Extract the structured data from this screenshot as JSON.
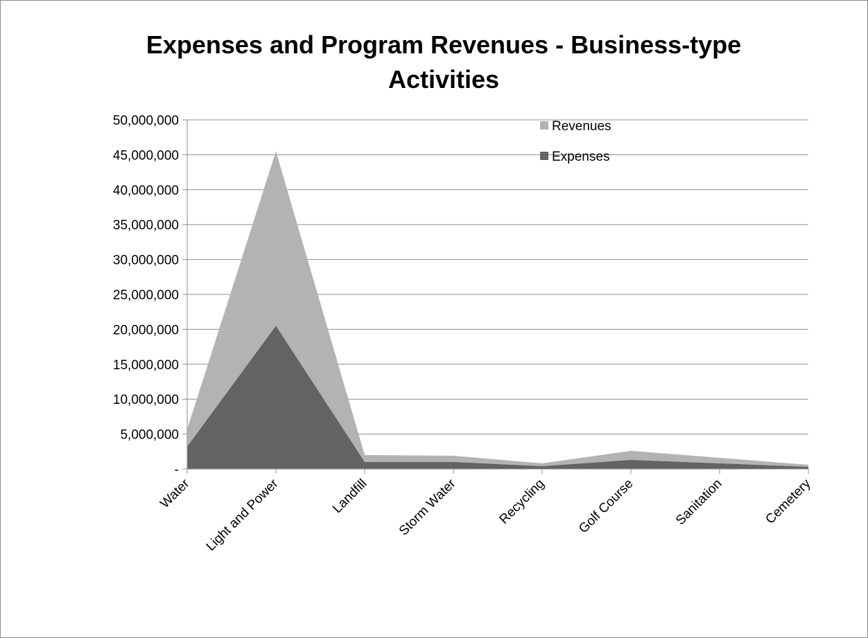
{
  "chart_data": {
    "type": "area",
    "stacked": true,
    "title": "Expenses and Program Revenues - Business-type Activities",
    "categories": [
      "Water",
      "Light and Power",
      "Landfill",
      "Storm Water",
      "Recycling",
      "Golf Course",
      "Sanitation",
      "Cemetery"
    ],
    "series": [
      {
        "name": "Expenses",
        "color": "#636363",
        "values": [
          3200000,
          20500000,
          1000000,
          1000000,
          400000,
          1300000,
          800000,
          300000
        ]
      },
      {
        "name": "Revenues",
        "color": "#b3b3b3",
        "values": [
          2500000,
          25000000,
          1000000,
          900000,
          400000,
          1300000,
          800000,
          300000
        ]
      }
    ],
    "ylim": [
      0,
      50000000
    ],
    "yticks": [
      0,
      5000000,
      10000000,
      15000000,
      20000000,
      25000000,
      30000000,
      35000000,
      40000000,
      45000000,
      50000000
    ],
    "ytick_labels": [
      "-",
      "5,000,000",
      "10,000,000",
      "15,000,000",
      "20,000,000",
      "25,000,000",
      "30,000,000",
      "35,000,000",
      "40,000,000",
      "45,000,000",
      "50,000,000"
    ],
    "grid": true,
    "legend": {
      "position": "top-right",
      "entries": [
        "Revenues",
        "Expenses"
      ]
    }
  }
}
